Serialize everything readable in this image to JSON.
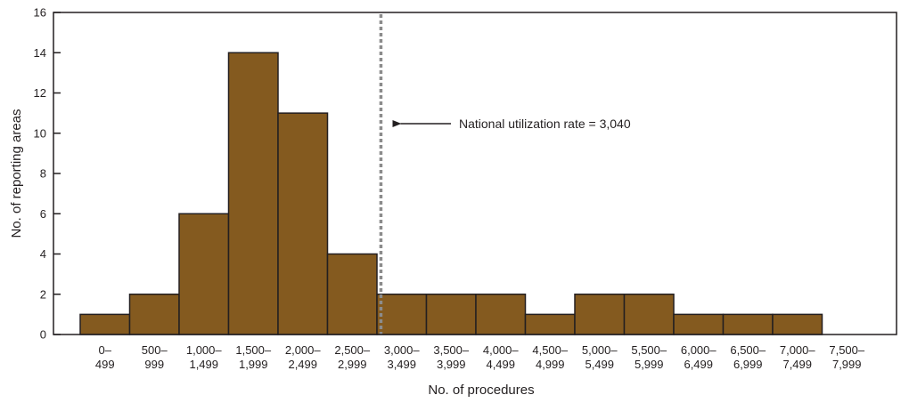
{
  "chart_data": {
    "type": "bar",
    "title": "",
    "xlabel": "No. of procedures",
    "ylabel": "No. of reporting areas",
    "ylim": [
      0,
      16
    ],
    "yticks": [
      0,
      2,
      4,
      6,
      8,
      10,
      12,
      14,
      16
    ],
    "grid": false,
    "categories": [
      [
        "0–",
        "499"
      ],
      [
        "500–",
        "999"
      ],
      [
        "1,000–",
        "1,499"
      ],
      [
        "1,500–",
        "1,999"
      ],
      [
        "2,000–",
        "2,499"
      ],
      [
        "2,500–",
        "2,999"
      ],
      [
        "3,000–",
        "3,499"
      ],
      [
        "3,500–",
        "3,999"
      ],
      [
        "4,000–",
        "4,499"
      ],
      [
        "4,500–",
        "4,999"
      ],
      [
        "5,000–",
        "5,499"
      ],
      [
        "5,500–",
        "5,999"
      ],
      [
        "6,000–",
        "6,499"
      ],
      [
        "6,500–",
        "6,999"
      ],
      [
        "7,000–",
        "7,499"
      ],
      [
        "7,500–",
        "7,999"
      ]
    ],
    "values": [
      1,
      2,
      6,
      14,
      11,
      4,
      2,
      2,
      2,
      1,
      2,
      2,
      1,
      1,
      1,
      0
    ],
    "bar_color": "#845a1f",
    "reference_line": {
      "x": 3040,
      "label": "National utilization rate = 3,040",
      "color": "#8c8c8c"
    }
  }
}
